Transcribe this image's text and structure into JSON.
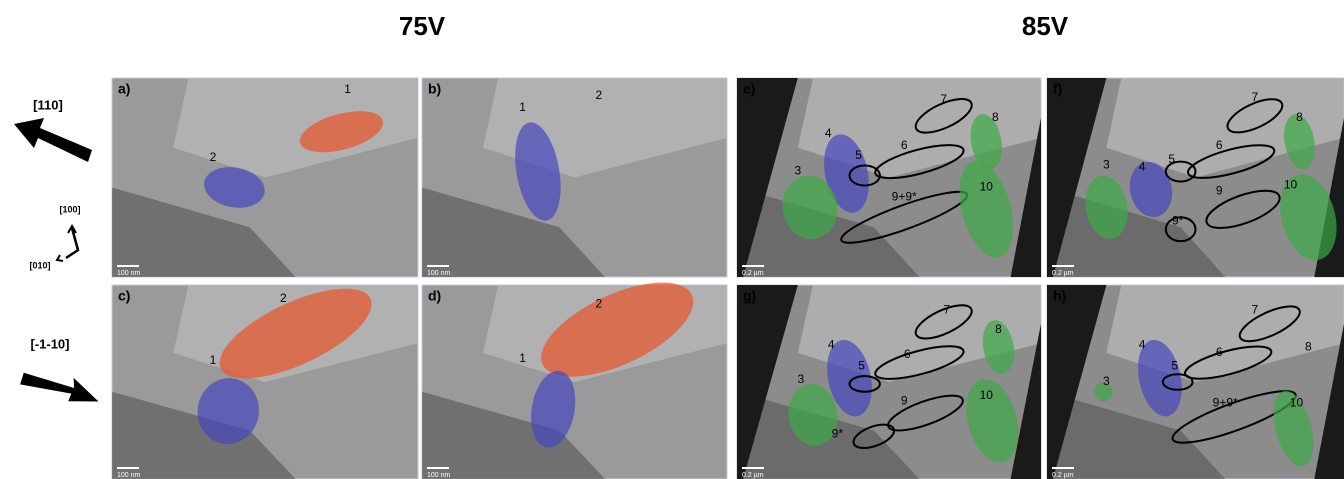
{
  "header": {
    "left": "75V",
    "right": "85V"
  },
  "orientation": {
    "top": "[110]",
    "bottom": "[-1-10]",
    "axis_up": "[100]",
    "axis_down": "[010]"
  },
  "panels": [
    {
      "label": "a)",
      "scale": "100 nm",
      "regions": [
        "1",
        "2"
      ]
    },
    {
      "label": "b)",
      "scale": "100 nm",
      "regions": [
        "1",
        "2"
      ]
    },
    {
      "label": "e)",
      "scale": "0.2 µm",
      "regions": [
        "7",
        "8",
        "6",
        "4",
        "5",
        "3",
        "9+9*",
        "10"
      ]
    },
    {
      "label": "f)",
      "scale": "0.2 µm",
      "regions": [
        "7",
        "8",
        "3",
        "4",
        "5",
        "6",
        "9",
        "10",
        "9*"
      ]
    },
    {
      "label": "c)",
      "scale": "100 nm",
      "regions": [
        "2",
        "1"
      ]
    },
    {
      "label": "d)",
      "scale": "100 nm",
      "regions": [
        "2",
        "1"
      ]
    },
    {
      "label": "g)",
      "scale": "0.2 µm",
      "regions": [
        "7",
        "8",
        "4",
        "5",
        "6",
        "3",
        "9",
        "10",
        "9*"
      ]
    },
    {
      "label": "h)",
      "scale": "0.2 µm",
      "regions": [
        "7",
        "4",
        "5",
        "6",
        "8",
        "3",
        "9+9*",
        "10"
      ]
    }
  ]
}
